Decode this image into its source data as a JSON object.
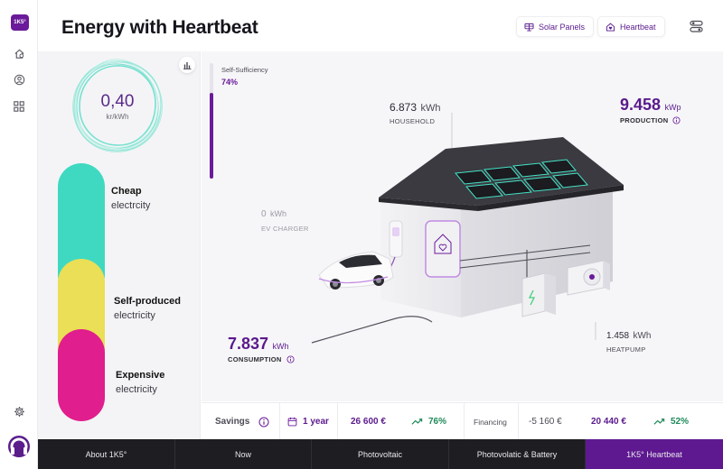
{
  "app": {
    "logo_text": "1K5°",
    "title": "Energy with Heartbeat"
  },
  "header": {
    "solar_button_label": "Solar Panels",
    "heartbeat_button_label": "Heartbeat"
  },
  "price": {
    "value": "0,40",
    "unit": "kr/kWh"
  },
  "tariffs": [
    {
      "name": "Cheap",
      "sub": "electrcity",
      "color": "#3fd9c1"
    },
    {
      "name": "Self-produced",
      "sub": "electricity",
      "color": "#eadf56"
    },
    {
      "name": "Expensive",
      "sub": "electricity",
      "color": "#e11e8d"
    }
  ],
  "self_sufficiency": {
    "label": "Self-Sufficiency",
    "value": "74%",
    "level": 0.74
  },
  "metrics": {
    "household": {
      "value": "6.873",
      "unit": "kWh",
      "label": "HOUSEHOLD"
    },
    "production": {
      "value": "9.458",
      "unit": "kWp",
      "label": "PRODUCTION"
    },
    "ev_charger": {
      "value": "0",
      "unit": "kWh",
      "label": "EV CHARGER"
    },
    "consumption": {
      "value": "7.837",
      "unit": "kWh",
      "label": "CONSUMPTION"
    },
    "heatpump": {
      "value": "1.458",
      "unit": "kWh",
      "label": "HEATPUMP"
    }
  },
  "savings": {
    "label": "Savings",
    "period": "1 year",
    "amount": "26 600 €",
    "percent": "76%",
    "financing_label": "Financing",
    "financing_amount": "-5 160 €",
    "net_amount": "20 440 €",
    "net_percent": "52%"
  },
  "nav": {
    "tabs": [
      "About 1K5°",
      "Now",
      "Photovoltaic",
      "Photovolatic & Battery",
      "1K5° Heartbeat"
    ],
    "active": "1K5° Heartbeat"
  },
  "colors": {
    "accent": "#6a1a9a",
    "positive": "#1f8a5b",
    "nav_bg": "#1e1e22"
  }
}
